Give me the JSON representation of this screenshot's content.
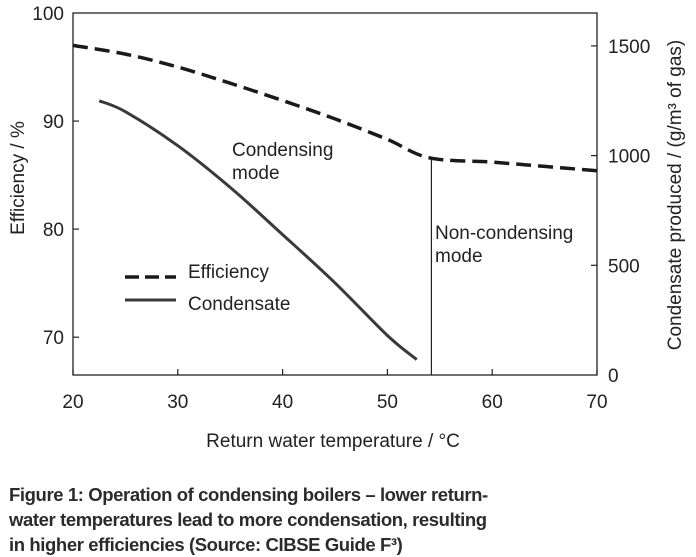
{
  "chart_data": {
    "type": "line",
    "xlabel": "Return water temperature / °C",
    "ylabel_left": "Efficiency / %",
    "ylabel_right": "Condensate produced / (g/m³ of gas)",
    "xlim": [
      20,
      70
    ],
    "ylim_left": [
      66.5,
      100
    ],
    "ylim_right": [
      0,
      1650
    ],
    "x_ticks": [
      "20",
      "30",
      "40",
      "50",
      "60",
      "70"
    ],
    "y_ticks_left": [
      "70",
      "80",
      "90",
      "100"
    ],
    "y_ticks_right": [
      "0",
      "500",
      "1000",
      "1500"
    ],
    "series": [
      {
        "name": "Efficiency",
        "axis": "left",
        "style": "dashed",
        "x": [
          20,
          25,
          30,
          35,
          40,
          45,
          50,
          54,
          60,
          65,
          70
        ],
        "y": [
          97.0,
          96.2,
          95.0,
          93.5,
          91.9,
          90.2,
          88.3,
          86.6,
          86.2,
          85.8,
          85.4
        ]
      },
      {
        "name": "Condensate",
        "axis": "right",
        "style": "solid",
        "x": [
          22.5,
          25,
          30,
          35,
          40,
          45,
          50,
          52.8
        ],
        "y": [
          1250,
          1200,
          1045,
          855,
          640,
          420,
          180,
          70
        ]
      }
    ],
    "divider_x": 54.2,
    "annotations": [
      {
        "lines": [
          "Condensing",
          "mode"
        ]
      },
      {
        "lines": [
          "Non-condensing",
          "mode"
        ]
      }
    ],
    "legend_position": "lower-left",
    "grid": false
  },
  "caption": {
    "lines": [
      "Figure 1: Operation of condensing boilers – lower return-",
      "water temperatures lead to more condensation, resulting",
      "in higher efficiencies (Source: CIBSE Guide F³)"
    ]
  }
}
